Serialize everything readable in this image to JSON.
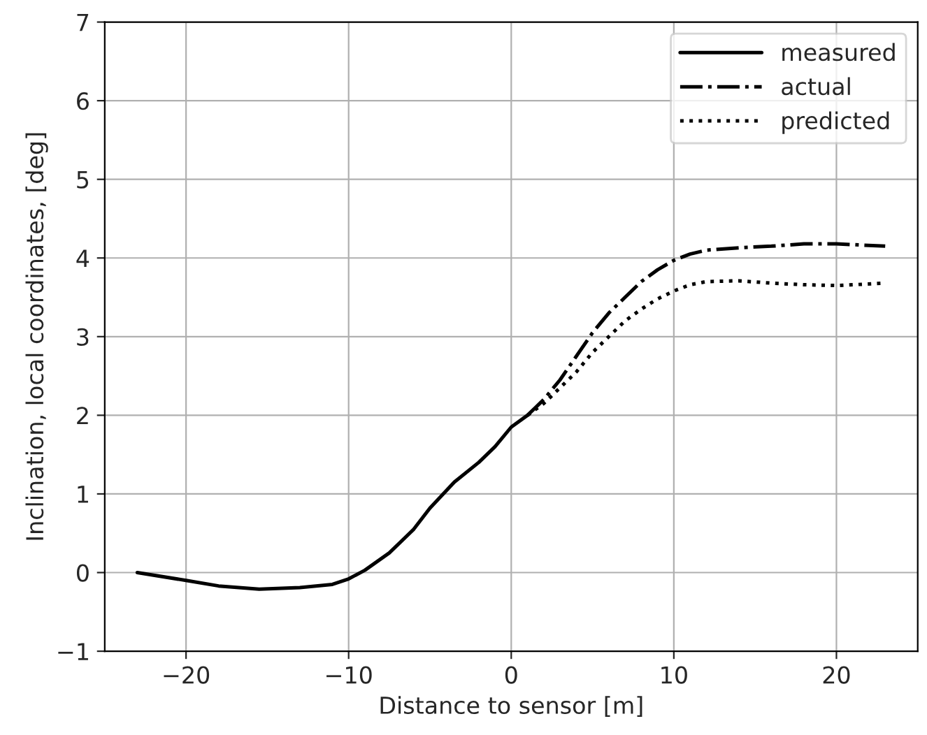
{
  "chart_data": {
    "type": "line",
    "xlabel": "Distance to sensor [m]",
    "ylabel": "Inclination, local coordinates, [deg]",
    "xlim": [
      -25,
      25
    ],
    "ylim": [
      -1,
      7
    ],
    "xticks": [
      {
        "value": -20,
        "label": "−20"
      },
      {
        "value": -10,
        "label": "−10"
      },
      0,
      10,
      20
    ],
    "yticks": [
      {
        "value": -1,
        "label": "−1"
      },
      0,
      1,
      2,
      3,
      4,
      5,
      6,
      7
    ],
    "grid": true,
    "legend": "top right",
    "marker": "none",
    "series": [
      {
        "name": "measured",
        "color": "#000000",
        "line_style": "solid",
        "x": [
          -23,
          -20,
          -18,
          -15.5,
          -13,
          -11,
          -10,
          -9,
          -7.5,
          -6,
          -5,
          -3.5,
          -2,
          -1,
          0,
          1
        ],
        "values": [
          0,
          -0.1,
          -0.17,
          -0.21,
          -0.19,
          -0.15,
          -0.08,
          0.03,
          0.25,
          0.55,
          0.82,
          1.15,
          1.4,
          1.6,
          1.85,
          2.0
        ]
      },
      {
        "name": "actual",
        "color": "#000000",
        "line_style": "dashdot",
        "x": [
          1,
          2,
          3,
          4,
          5,
          6,
          7,
          8,
          9,
          10,
          11,
          12,
          14,
          16,
          18,
          20,
          23
        ],
        "values": [
          2.0,
          2.2,
          2.45,
          2.75,
          3.05,
          3.3,
          3.5,
          3.7,
          3.85,
          3.97,
          4.05,
          4.1,
          4.13,
          4.15,
          4.18,
          4.18,
          4.15
        ]
      },
      {
        "name": "predicted",
        "color": "#000000",
        "line_style": "dotted",
        "x": [
          1,
          2,
          3,
          4,
          5,
          6,
          7,
          8,
          9,
          10,
          11,
          12,
          14,
          16,
          18,
          20,
          23
        ],
        "values": [
          2.0,
          2.15,
          2.35,
          2.55,
          2.8,
          3.0,
          3.2,
          3.35,
          3.48,
          3.58,
          3.66,
          3.7,
          3.71,
          3.68,
          3.66,
          3.65,
          3.68
        ]
      }
    ]
  }
}
